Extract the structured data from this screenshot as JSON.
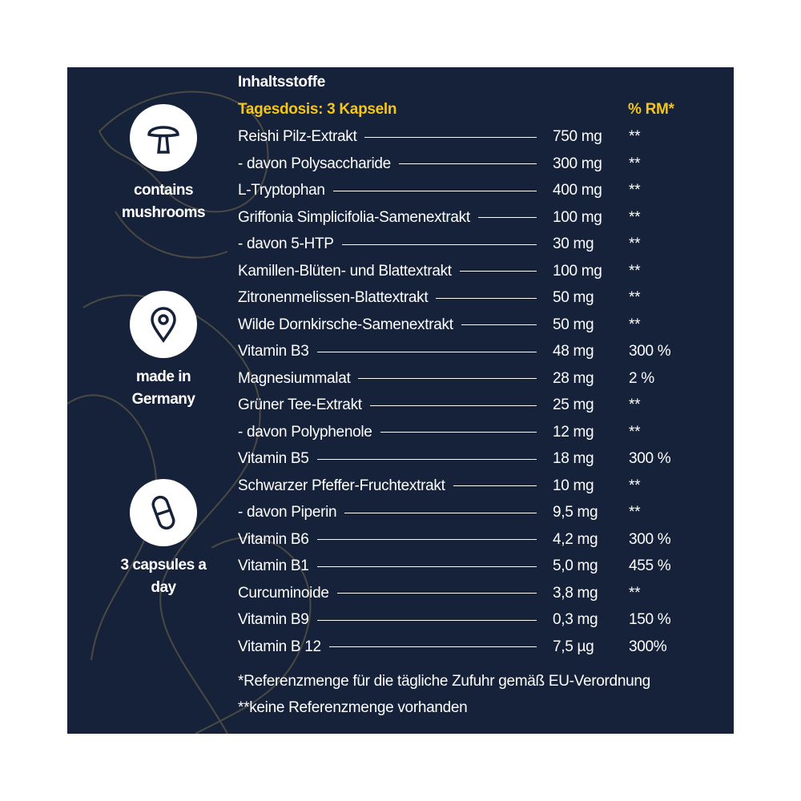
{
  "header": {
    "title": "Inhaltsstoffe",
    "dose": "Tagesdosis: 3 Kapseln",
    "rm_header": "% RM*"
  },
  "badges": [
    {
      "label": "contains mushrooms"
    },
    {
      "label": "made in Germany"
    },
    {
      "label": "3 capsules a day"
    }
  ],
  "table": {
    "rows": [
      [
        "Reishi Pilz-Extrakt",
        "750 mg",
        "**"
      ],
      [
        "- davon Polysaccharide",
        "300 mg",
        "**"
      ],
      [
        "L-Tryptophan",
        "400 mg",
        "**"
      ],
      [
        "Griffonia Simplicifolia-Samenextrakt",
        "100 mg",
        "**"
      ],
      [
        "- davon 5-HTP",
        "30 mg",
        "**"
      ],
      [
        "Kamillen-Blüten- und Blattextrakt",
        "100 mg",
        "**"
      ],
      [
        "Zitronenmelissen-Blattextrakt",
        "50 mg",
        "**"
      ],
      [
        "Wilde Dornkirsche-Samenextrakt",
        "50 mg",
        "**"
      ],
      [
        "Vitamin B3",
        "48 mg",
        "300 %"
      ],
      [
        "Magnesiummalat",
        "28 mg",
        "2 %"
      ],
      [
        "Grüner Tee-Extrakt",
        "25 mg",
        "**"
      ],
      [
        "- davon Polyphenole",
        "12 mg",
        "**"
      ],
      [
        "Vitamin B5",
        "18 mg",
        "300 %"
      ],
      [
        "Schwarzer Pfeffer-Fruchtextrakt",
        "10 mg",
        "**"
      ],
      [
        "- davon Piperin",
        "9,5 mg",
        "**"
      ],
      [
        "Vitamin B6",
        "4,2 mg",
        "300 %"
      ],
      [
        "Vitamin B1",
        "5,0 mg",
        "455 %"
      ],
      [
        "Curcuminoide",
        "3,8 mg",
        "**"
      ],
      [
        "Vitamin B9",
        "0,3 mg",
        "150 %"
      ],
      [
        "Vitamin B 12",
        "7,5 µg",
        "300%"
      ]
    ]
  },
  "footnotes": [
    "*Referenzmenge für die tägliche Zufuhr gemäß EU-Verordnung",
    "**keine Referenzmenge vorhanden"
  ]
}
